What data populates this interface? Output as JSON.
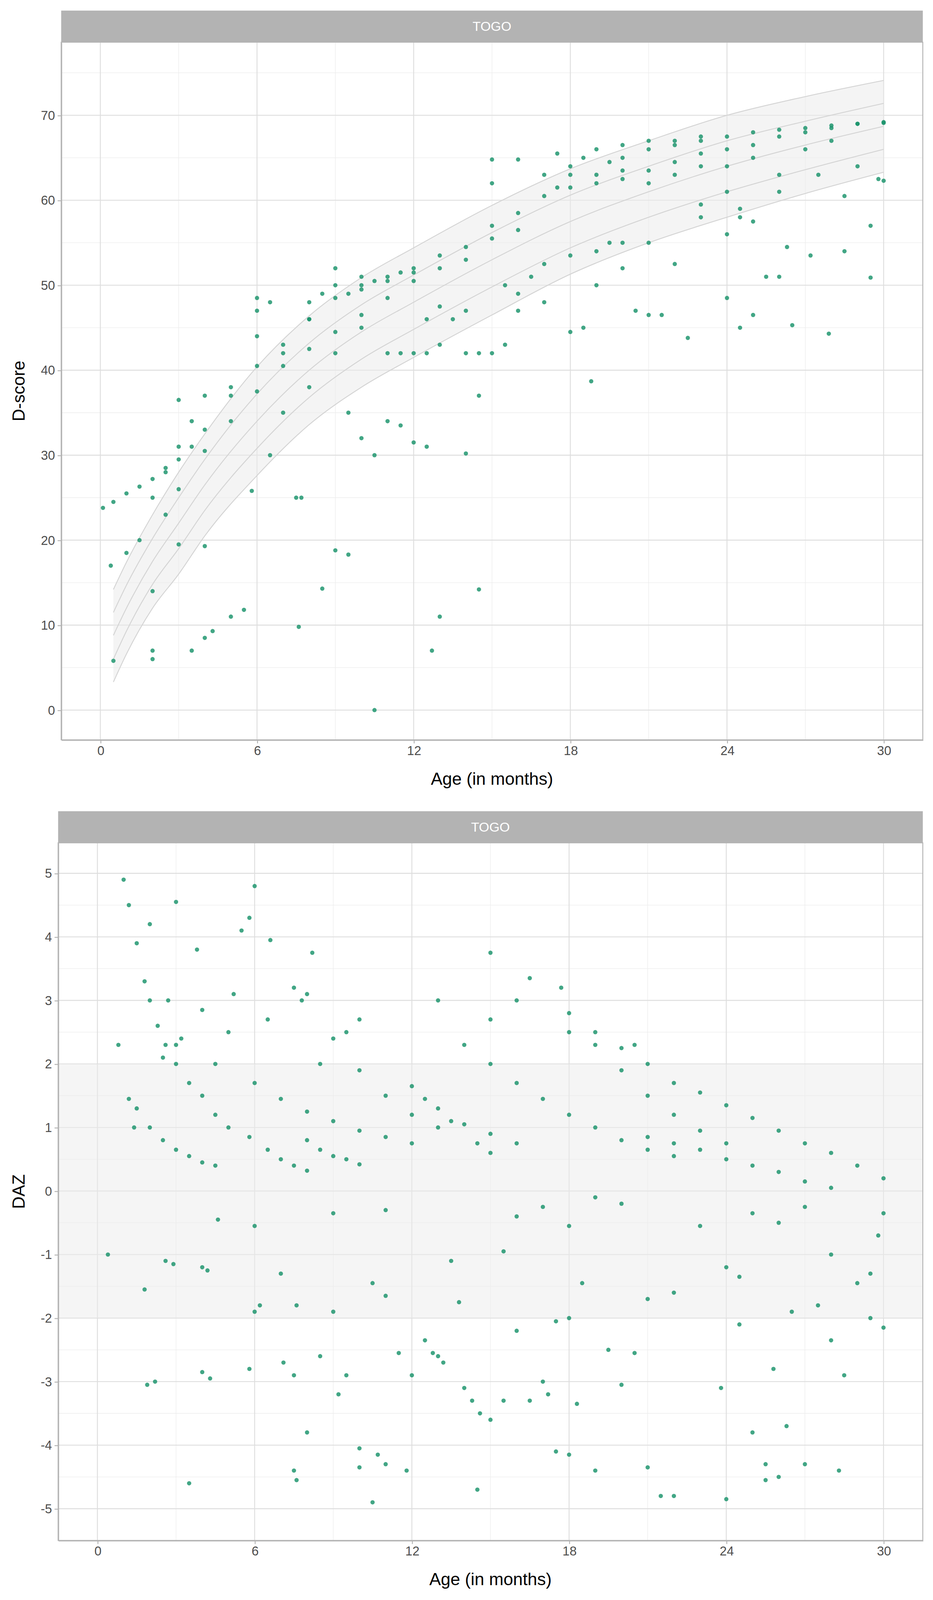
{
  "chart_data": [
    {
      "type": "scatter",
      "title": "TOGO",
      "x_label": "Age (in months)",
      "y_label": "D-score",
      "xlim": [
        -1.5,
        31.5
      ],
      "ylim": [
        -3.5,
        78.6
      ],
      "xticks": [
        0,
        6,
        12,
        18,
        24,
        30
      ],
      "yticks": [
        0,
        10,
        20,
        30,
        40,
        50,
        60,
        70
      ],
      "xticks_minor": [
        3,
        9,
        15,
        21,
        27
      ],
      "yticks_minor": [
        5,
        15,
        25,
        35,
        45,
        55,
        65,
        75
      ],
      "grid": true,
      "series": [
        {
          "type": "scatter",
          "marker": "circle",
          "color": "#19936a",
          "x": [
            0.5,
            1,
            1.5,
            2,
            2.5,
            3,
            3.5,
            4,
            5,
            6,
            7,
            8,
            9,
            10,
            11,
            12,
            13,
            14,
            15,
            16,
            3,
            4,
            5,
            6,
            7,
            8,
            9,
            10,
            11,
            12,
            13,
            14,
            15,
            16,
            17,
            18,
            19,
            20,
            21,
            22,
            23,
            24,
            25,
            26,
            27,
            28,
            29,
            30,
            20,
            21,
            22,
            23,
            24,
            25,
            26,
            27,
            28,
            29,
            30,
            0.1,
            0.4,
            0.5,
            1,
            1.5,
            2,
            2,
            2,
            2.5,
            3,
            3,
            3.5,
            4,
            4,
            4.3,
            5,
            5.5,
            5.8,
            6,
            6.5,
            6.5,
            7,
            7.5,
            7.7,
            7.6,
            8,
            8.5,
            9,
            9.5,
            9.5,
            10,
            10.5,
            10.5,
            11,
            11.5,
            12,
            12.5,
            12.7,
            13,
            13,
            14,
            14.5,
            14.5,
            11,
            11.5,
            12,
            12.5,
            14,
            14.5,
            15,
            15.5,
            16,
            17,
            18,
            18.5,
            18.8,
            19,
            20,
            20.5,
            21,
            21.5,
            22.5,
            20,
            23,
            24,
            24.5,
            25,
            25.5,
            26,
            26.3,
            26.5,
            27.2,
            27.9,
            28.5,
            29.5,
            29.5,
            29.8,
            30,
            28.5,
            29,
            27.5,
            26,
            25,
            24.5,
            16,
            15,
            15,
            17.5,
            18,
            19,
            20,
            21,
            22,
            23,
            24.5,
            24,
            22,
            19,
            17,
            16.5,
            15.5,
            14,
            13,
            12.5,
            10,
            9,
            8,
            7,
            6,
            5,
            4,
            3.5,
            3,
            2.5,
            2,
            6,
            8,
            9,
            10,
            13.5,
            16,
            18,
            19.5,
            21,
            23,
            24,
            26,
            8.5,
            9,
            9.5,
            10,
            10.5,
            11,
            11.5,
            12,
            17,
            17.5,
            18,
            18.5,
            19,
            19.5,
            20,
            21,
            22,
            23,
            24,
            25,
            27,
            28
          ],
          "values": [
            24.5,
            25.5,
            26.3,
            27.2,
            28,
            29.5,
            31,
            33,
            37,
            40.5,
            43,
            46,
            48.5,
            50,
            51,
            52,
            53.5,
            54.5,
            55.5,
            56.5,
            26,
            30.5,
            34,
            37.5,
            40.5,
            42.5,
            44.5,
            46.5,
            48.5,
            50.5,
            52,
            53,
            57,
            58.5,
            60.5,
            61.5,
            62,
            62.5,
            63.5,
            64.5,
            65.5,
            66,
            66.5,
            67.5,
            68,
            68.5,
            69,
            69.2,
            65,
            66,
            66.5,
            67,
            67.5,
            68,
            68.3,
            68.5,
            68.8,
            69,
            69.1,
            23.8,
            17,
            5.8,
            18.5,
            20,
            6,
            7,
            14,
            23,
            19.5,
            36.5,
            7,
            19.3,
            8.5,
            9.3,
            11,
            11.8,
            25.8,
            48.5,
            48,
            30,
            35,
            25,
            25,
            9.8,
            46,
            14.3,
            18.8,
            18.3,
            35,
            32,
            0,
            30,
            34,
            33.5,
            31.5,
            31,
            7,
            11,
            43,
            30.2,
            14.2,
            37,
            42,
            42,
            42,
            42,
            42,
            42,
            42,
            43,
            47,
            48,
            44.5,
            45,
            38.7,
            50,
            52,
            47,
            46.5,
            46.5,
            43.8,
            55,
            58,
            48.5,
            45,
            46.5,
            51,
            51,
            54.5,
            45.3,
            53.5,
            44.3,
            54,
            50.9,
            57,
            62.5,
            62.3,
            60.5,
            64,
            63,
            61,
            57.5,
            59,
            64.8,
            64.8,
            62,
            65.5,
            63,
            66,
            66.5,
            67,
            67,
            67.5,
            58,
            56,
            52.5,
            54,
            52.5,
            51,
            50,
            47,
            47.5,
            46,
            45,
            42,
            38,
            42,
            44,
            38,
            37,
            34,
            31,
            28.5,
            25,
            47,
            48,
            52,
            51,
            46,
            49,
            53.5,
            55,
            55,
            59.5,
            61,
            63,
            49,
            50,
            49,
            49.5,
            50.5,
            50.5,
            51.5,
            51.5,
            63,
            61.5,
            64,
            65,
            63,
            64.5,
            63.5,
            62,
            63,
            64,
            64,
            65,
            66,
            67
          ]
        },
        {
          "type": "line",
          "line_style": "solid",
          "color": "#d4d4d4",
          "x": [
            0.5,
            1,
            2,
            3,
            4,
            6,
            8,
            10,
            12,
            15,
            18,
            21,
            24,
            27,
            30
          ],
          "values": [
            3.3,
            6.6,
            12,
            16,
            20.5,
            27.6,
            33.6,
            38,
            41.5,
            46.5,
            51.3,
            55,
            58,
            60.8,
            63.3
          ]
        },
        {
          "type": "line",
          "line_style": "solid",
          "color": "#d4d4d4",
          "x": [
            0.5,
            1,
            2,
            3,
            4,
            6,
            8,
            10,
            12,
            15,
            18,
            21,
            24,
            27,
            30
          ],
          "values": [
            6,
            9.3,
            14.8,
            19,
            23.5,
            30.8,
            36.8,
            41.3,
            44.8,
            49.8,
            54.4,
            58,
            61,
            63.6,
            66
          ]
        },
        {
          "type": "line",
          "line_style": "solid",
          "color": "#d4d4d4",
          "x": [
            0.5,
            1,
            2,
            3,
            4,
            6,
            8,
            10,
            12,
            15,
            18,
            21,
            24,
            27,
            30
          ],
          "values": [
            8.8,
            12,
            17.5,
            22,
            26.5,
            34,
            40,
            44.5,
            48,
            53,
            57.5,
            61,
            64,
            66.5,
            68.7
          ]
        },
        {
          "type": "line",
          "line_style": "solid",
          "color": "#d4d4d4",
          "x": [
            0.5,
            1,
            2,
            3,
            4,
            6,
            8,
            10,
            12,
            15,
            18,
            21,
            24,
            27,
            30
          ],
          "values": [
            11.5,
            14.7,
            20.2,
            25,
            29.5,
            37.2,
            43.2,
            47.7,
            51.2,
            56.2,
            60.6,
            64,
            67,
            69.3,
            71.4
          ]
        },
        {
          "type": "line",
          "line_style": "solid",
          "color": "#d4d4d4",
          "x": [
            0.5,
            1,
            2,
            3,
            4,
            6,
            8,
            10,
            12,
            15,
            18,
            21,
            24,
            27,
            30
          ],
          "values": [
            14.2,
            17.4,
            23,
            28,
            32.5,
            40.4,
            46.4,
            50.9,
            54.4,
            59.4,
            63.7,
            67,
            70,
            72.2,
            74.1
          ]
        }
      ]
    },
    {
      "type": "scatter",
      "title": "TOGO",
      "x_label": "Age (in months)",
      "y_label": "DAZ",
      "xlim": [
        -1.5,
        31.5
      ],
      "ylim": [
        -5.5,
        5.48
      ],
      "xticks": [
        0,
        6,
        12,
        18,
        24,
        30
      ],
      "yticks": [
        -5,
        -4,
        -3,
        -2,
        -1,
        0,
        1,
        2,
        3,
        4,
        5
      ],
      "xticks_minor": [
        3,
        9,
        15,
        21,
        27
      ],
      "yticks_minor": [
        -4.5,
        -3.5,
        -2.5,
        -1.5,
        -0.5,
        0.5,
        1.5,
        2.5,
        3.5,
        4.5
      ],
      "grid": true,
      "reference_band": [
        -2,
        2
      ],
      "series": [
        {
          "type": "scatter",
          "marker": "circle",
          "color": "#19936a",
          "x": [
            1,
            1.2,
            1.5,
            1.8,
            2,
            2.3,
            2.6,
            3,
            3.5,
            4,
            4.5,
            5,
            1.5,
            2,
            2.5,
            3,
            3.5,
            4,
            4.5,
            5.8,
            6.5,
            7,
            7.5,
            8,
            8,
            8.5,
            9,
            9.5,
            10,
            6,
            7,
            8,
            9,
            10,
            11,
            12,
            9,
            10,
            11,
            12,
            13,
            12,
            13,
            14,
            15,
            16,
            12.5,
            13.5,
            14.5,
            15,
            15,
            16,
            17,
            18,
            19,
            20,
            21,
            22,
            18,
            19,
            20,
            21,
            22,
            23,
            24,
            22,
            23,
            24,
            25,
            26,
            27,
            28,
            29,
            30,
            21,
            22,
            23,
            24,
            25,
            26,
            27,
            28,
            0.4,
            0.8,
            1.2,
            1.4,
            1.8,
            2,
            2.2,
            1.9,
            2.6,
            2.9,
            2.7,
            3,
            3.2,
            3.5,
            3.8,
            4,
            4.2,
            4.3,
            4,
            4.6,
            5.2,
            5.5,
            5.8,
            6,
            5.8,
            6,
            6.2,
            6,
            7,
            7.1,
            7.5,
            7.6,
            7.5,
            7.6,
            8,
            8.5,
            9,
            9.2,
            9,
            9.5,
            10,
            10,
            10.5,
            10.7,
            11,
            11,
            10.5,
            11,
            11.5,
            11.8,
            12,
            12.5,
            12.8,
            13,
            13.2,
            13.5,
            13.8,
            14,
            14.3,
            14.6,
            14.5,
            15,
            15.5,
            15.5,
            16,
            16.5,
            17,
            17.5,
            17.2,
            17.5,
            18,
            18,
            18.5,
            18.3,
            19,
            19.5,
            20,
            20.5,
            21,
            21,
            21.5,
            22,
            22,
            23,
            23.8,
            24,
            24,
            24.5,
            24.5,
            25,
            25.5,
            25.5,
            25.8,
            26,
            26.3,
            26.5,
            27,
            27.5,
            28,
            28,
            28.3,
            28.5,
            29,
            29.5,
            29.5,
            30,
            29.8,
            30,
            25,
            26,
            27,
            20,
            19,
            18,
            17,
            16,
            15,
            15,
            16,
            16.5,
            17.7,
            18,
            19,
            20,
            20.5,
            21,
            14,
            13,
            10,
            9.5,
            8,
            8.5,
            7.5,
            7.8,
            8.2,
            6.5,
            6.6,
            5,
            4,
            4.5,
            3,
            2.5
          ],
          "values": [
            4.9,
            4.5,
            3.9,
            3.3,
            3.0,
            2.6,
            2.3,
            2.0,
            1.7,
            1.5,
            1.2,
            1.0,
            1.3,
            1.0,
            0.8,
            0.65,
            0.55,
            0.45,
            0.4,
            0.85,
            0.65,
            0.5,
            0.4,
            0.32,
            0.8,
            0.65,
            0.55,
            0.5,
            0.42,
            1.7,
            1.45,
            1.25,
            1.1,
            0.95,
            0.85,
            0.75,
            2.4,
            1.9,
            1.5,
            1.2,
            1.0,
            1.65,
            1.3,
            1.05,
            0.9,
            0.75,
            1.45,
            1.1,
            0.75,
            0.6,
            2.0,
            1.7,
            1.45,
            1.2,
            1.0,
            0.8,
            0.65,
            0.55,
            2.8,
            2.3,
            1.9,
            1.5,
            1.2,
            0.95,
            0.75,
            1.7,
            1.55,
            1.35,
            1.15,
            0.95,
            0.75,
            0.6,
            0.4,
            0.2,
            0.85,
            0.75,
            0.65,
            0.5,
            0.4,
            0.3,
            0.15,
            0.05,
            -1,
            2.3,
            1.45,
            1,
            -1.55,
            4.2,
            -3,
            -3.05,
            -1.1,
            -1.15,
            3,
            4.55,
            2.4,
            -4.6,
            3.8,
            -1.2,
            -1.25,
            -2.95,
            -2.85,
            -0.45,
            3.1,
            4.1,
            4.3,
            4.8,
            -2.8,
            -1.9,
            -1.8,
            -0.55,
            -1.3,
            -2.7,
            -4.4,
            -4.55,
            -2.9,
            -1.8,
            -3.8,
            -2.6,
            -1.9,
            -3.2,
            -0.35,
            -2.9,
            -4.05,
            -4.35,
            -4.9,
            -4.15,
            -4.3,
            -0.3,
            -1.45,
            -1.65,
            -2.55,
            -4.4,
            -2.9,
            -2.35,
            -2.55,
            -2.6,
            -2.7,
            -1.1,
            -1.75,
            -3.1,
            -3.3,
            -3.5,
            -4.7,
            -3.6,
            -3.3,
            -0.95,
            -2.2,
            -3.3,
            -3,
            -4.1,
            -3.2,
            -2.05,
            -4.15,
            -2,
            -1.45,
            -3.35,
            -4.4,
            -2.5,
            -3.05,
            -2.55,
            -1.7,
            -4.35,
            -4.8,
            -4.8,
            -1.6,
            -0.55,
            -3.1,
            -4.85,
            -1.2,
            -1.35,
            -2.1,
            -3.8,
            -4.55,
            -4.3,
            -2.8,
            -4.5,
            -3.7,
            -1.9,
            -4.3,
            -1.8,
            -2.35,
            -1,
            -4.4,
            -2.9,
            -1.45,
            -2,
            -1.3,
            -2.15,
            -0.7,
            -0.35,
            -0.35,
            -0.5,
            -0.25,
            -0.2,
            -0.1,
            -0.55,
            -0.25,
            -0.4,
            3.75,
            2.7,
            3,
            3.35,
            3.2,
            2.5,
            2.5,
            2.25,
            2.3,
            2,
            2.3,
            3,
            2.7,
            2.5,
            3.1,
            2,
            3.2,
            3,
            3.75,
            2.7,
            3.95,
            2.5,
            2.85,
            2,
            2.3,
            2.1
          ]
        }
      ]
    }
  ]
}
